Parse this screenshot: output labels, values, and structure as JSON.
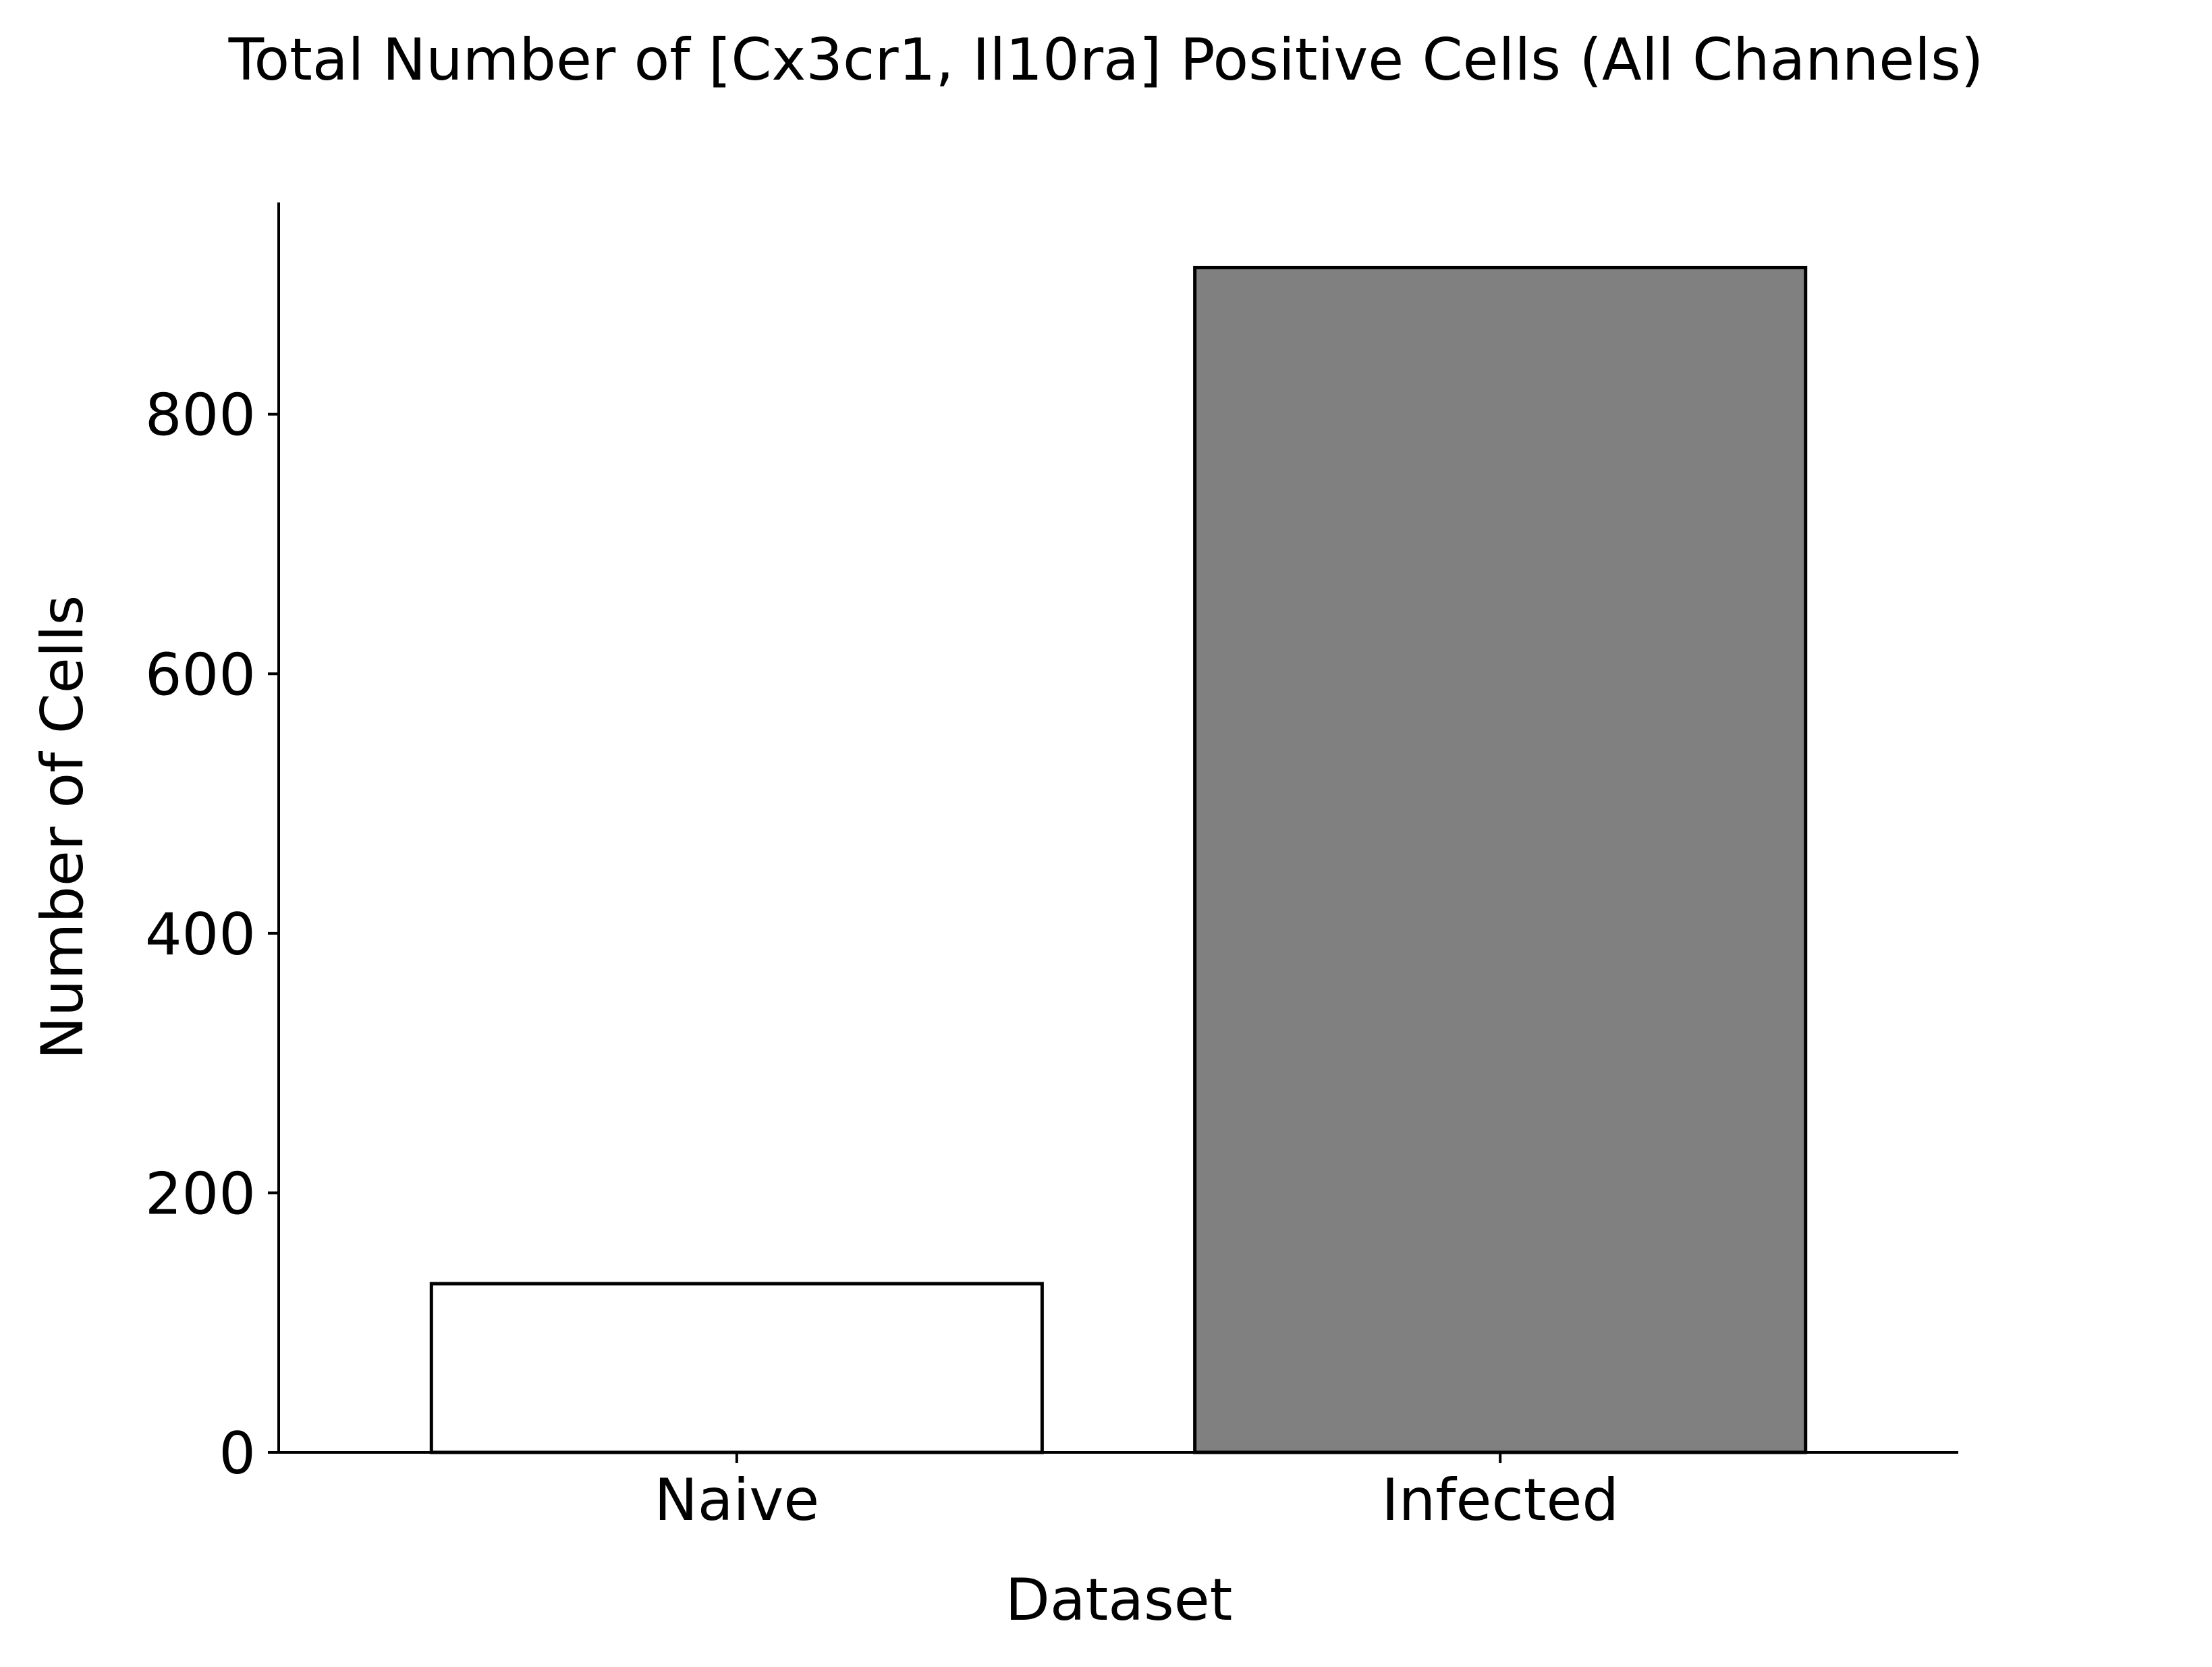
{
  "chart_data": {
    "type": "bar",
    "title": "Total Number of [Cx3cr1, Il10ra] Positive Cells (All Channels)",
    "xlabel": "Dataset",
    "ylabel": "Number of Cells",
    "categories": [
      "Naive",
      "Infected"
    ],
    "values": [
      130,
      913
    ],
    "bar_colors": [
      "#ffffff",
      "#808080"
    ],
    "edge_color": "#000000",
    "ylim": [
      0,
      960
    ],
    "yticks": [
      0,
      200,
      400,
      600,
      800
    ],
    "grid": false,
    "legend": "none"
  }
}
